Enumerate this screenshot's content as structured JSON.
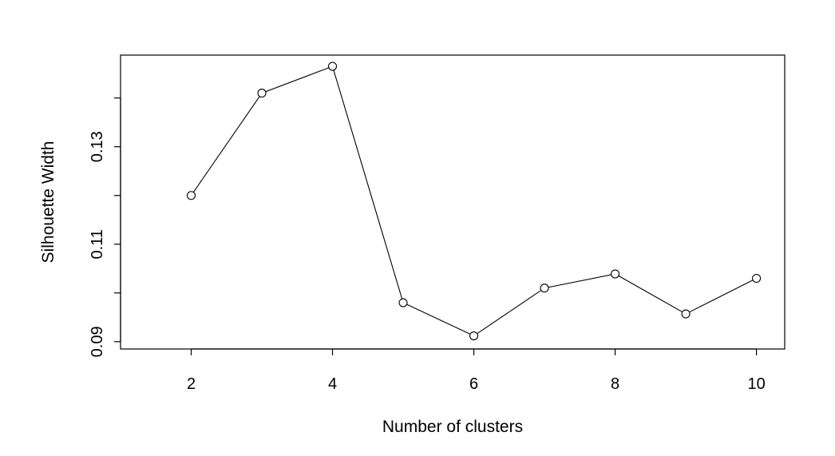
{
  "chart_data": {
    "type": "line",
    "title": "",
    "xlabel": "Number of clusters",
    "ylabel": "Silhouette Width",
    "x": [
      2,
      3,
      4,
      5,
      6,
      7,
      8,
      9,
      10
    ],
    "series": [
      {
        "values": [
          0.12,
          0.141,
          0.1465,
          0.098,
          0.0912,
          0.101,
          0.1039,
          0.0957,
          0.103
        ]
      }
    ],
    "xlim": [
      1,
      10.4
    ],
    "ylim": [
      0.0885,
      0.1488
    ],
    "x_ticks": [
      2,
      4,
      6,
      8,
      10
    ],
    "x_tick_labels": [
      "2",
      "4",
      "6",
      "8",
      "10"
    ],
    "y_ticks": [
      0.09,
      0.1,
      0.11,
      0.12,
      0.13,
      0.14
    ],
    "y_tick_labels": [
      "0.09",
      "",
      "0.11",
      "",
      "0.13",
      ""
    ],
    "grid": false,
    "legend": "none",
    "marker": "open-circle",
    "line_color": "#000000",
    "marker_color": "#000000"
  }
}
